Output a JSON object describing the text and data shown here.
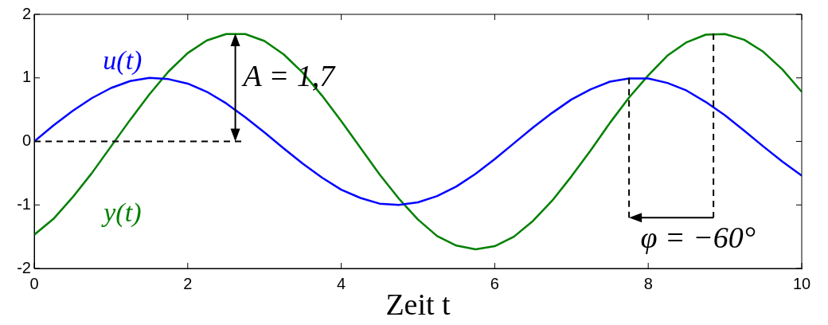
{
  "chart_data": {
    "type": "line",
    "xlabel": "Zeit t",
    "x": [
      0,
      0.25,
      0.5,
      0.75,
      1,
      1.25,
      1.5,
      1.75,
      2,
      2.25,
      2.5,
      2.75,
      3,
      3.25,
      3.5,
      3.75,
      4,
      4.25,
      4.5,
      4.75,
      5,
      5.25,
      5.5,
      5.75,
      6,
      6.25,
      6.5,
      6.75,
      7,
      7.25,
      7.5,
      7.75,
      8,
      8.25,
      8.5,
      8.75,
      9,
      9.25,
      9.5,
      9.75,
      10
    ],
    "series": [
      {
        "name": "u(t)",
        "color": "#0000ff",
        "values": [
          0,
          0.25,
          0.48,
          0.68,
          0.84,
          0.95,
          1.0,
          0.98,
          0.91,
          0.78,
          0.6,
          0.38,
          0.14,
          -0.11,
          -0.35,
          -0.57,
          -0.76,
          -0.89,
          -0.98,
          -1.0,
          -0.96,
          -0.86,
          -0.71,
          -0.51,
          -0.28,
          -0.03,
          0.22,
          0.45,
          0.66,
          0.82,
          0.94,
          0.99,
          0.99,
          0.92,
          0.8,
          0.62,
          0.41,
          0.17,
          -0.08,
          -0.32,
          -0.54
        ]
      },
      {
        "name": "y(t)",
        "color": "#008000",
        "values": [
          -1.47,
          -1.22,
          -0.88,
          -0.5,
          -0.08,
          0.34,
          0.74,
          1.1,
          1.39,
          1.59,
          1.69,
          1.69,
          1.58,
          1.37,
          1.08,
          0.72,
          0.32,
          -0.1,
          -0.52,
          -0.9,
          -1.23,
          -1.49,
          -1.64,
          -1.7,
          -1.65,
          -1.5,
          -1.25,
          -0.93,
          -0.55,
          -0.14,
          0.29,
          0.69,
          1.04,
          1.35,
          1.56,
          1.68,
          1.69,
          1.6,
          1.41,
          1.13,
          0.78
        ]
      }
    ],
    "xlim": [
      0,
      10
    ],
    "xticks": [
      0,
      2,
      4,
      6,
      8,
      10
    ],
    "ylim": [
      -2,
      2
    ],
    "yticks": [
      -2,
      -1,
      0,
      1,
      2
    ],
    "annotations": [
      {
        "text": "A = 1,7",
        "x": 2.62,
        "y": 1.7
      },
      {
        "text": "φ = −60°",
        "x": 8.85,
        "y": 1.7
      }
    ],
    "grid": false,
    "legend": false,
    "marker": "none",
    "line_style": "solid"
  }
}
